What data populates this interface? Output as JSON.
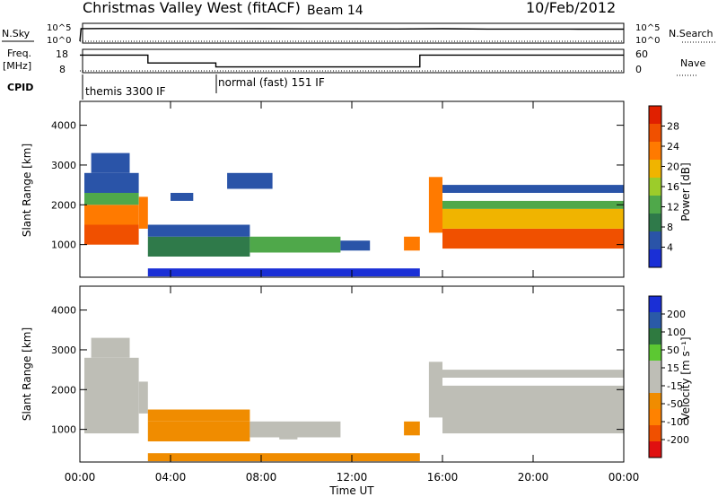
{
  "header": {
    "station": "Christmas Valley West (fitACF)",
    "beam": "Beam 14",
    "date": "10/Feb/2012"
  },
  "colors": {
    "power_scale": [
      "#1a2fd6",
      "#2a54a8",
      "#2f7a4a",
      "#4fa84a",
      "#9ccc2a",
      "#f0b400",
      "#ff7a00",
      "#f05000",
      "#e02000"
    ],
    "velocity_scale": [
      "#1a2fd6",
      "#2a5aa8",
      "#2f7a40",
      "#5cc832",
      "#bebeb6",
      "#bebeb6",
      "#f08c00",
      "#ff8200",
      "#f05000",
      "#e01010"
    ],
    "ground_scatter": "#bebeb6"
  },
  "strip": {
    "nsky_label": "N.Sky",
    "nsky_ticks": [
      "10^5",
      "10^0"
    ],
    "nsearch_label": "N.Search",
    "nsearch_ticks": [
      "10^5",
      "10^0"
    ],
    "freq_label_1": "Freq.",
    "freq_label_2": "[MHz]",
    "freq_ticks": [
      "18",
      "8"
    ],
    "nave_label": "Nave",
    "nave_ticks": [
      "60",
      "0"
    ],
    "cpid_label": "CPID",
    "modes": [
      "themis 3300 IF",
      "normal (fast) 151 IF"
    ]
  },
  "chart_data": [
    {
      "type": "line",
      "title": "N.Sky / N.Search",
      "x_unit": "hours UT",
      "yscale": "log",
      "ylim": [
        1,
        100000
      ],
      "series": [
        {
          "name": "N.Sky",
          "x": [
            0,
            0.05,
            1,
            2,
            3,
            4,
            6,
            8,
            10,
            12,
            14,
            16,
            18,
            20,
            22,
            24
          ],
          "y": [
            1,
            8000,
            9000,
            9000,
            8500,
            8000,
            8000,
            7500,
            7000,
            7000,
            6500,
            7500,
            6000,
            6000,
            5500,
            5500
          ]
        },
        {
          "name": "N.Search",
          "x": [
            0,
            24
          ],
          "y": [
            1,
            1
          ]
        }
      ]
    },
    {
      "type": "line",
      "title": "Freq. / Nave",
      "x_unit": "hours UT",
      "series": [
        {
          "name": "Freq. [MHz]",
          "x": [
            0,
            3,
            3,
            6,
            6,
            15,
            15,
            24
          ],
          "y": [
            16,
            16,
            12,
            12,
            10,
            10,
            16,
            16
          ]
        },
        {
          "name": "Nave",
          "x": [
            0,
            24
          ],
          "y": [
            8,
            8
          ]
        }
      ]
    },
    {
      "type": "heatmap",
      "title": "Power [dB]",
      "xlabel": "Time UT",
      "ylabel": "Slant Range [km]",
      "zlabel": "Power [dB]",
      "xlim": [
        0,
        24
      ],
      "ylim": [
        180,
        4600
      ],
      "xticks": [
        "00:00",
        "04:00",
        "08:00",
        "12:00",
        "16:00",
        "20:00",
        "00:00"
      ],
      "yticks": [
        1000,
        2000,
        3000,
        4000
      ],
      "zticks": [
        4,
        8,
        12,
        16,
        20,
        24,
        28
      ],
      "zlim": [
        0,
        32
      ],
      "cells": [
        [
          0.2,
          2.6,
          1000,
          1500,
          26
        ],
        [
          0.2,
          2.6,
          1500,
          2000,
          22
        ],
        [
          0.2,
          2.6,
          2000,
          2300,
          14
        ],
        [
          0.2,
          2.6,
          2300,
          2800,
          6
        ],
        [
          0.5,
          2.2,
          2800,
          3300,
          4
        ],
        [
          2.6,
          3.0,
          1400,
          2200,
          24
        ],
        [
          3.0,
          7.5,
          700,
          1200,
          10
        ],
        [
          3.0,
          7.5,
          1200,
          1500,
          6
        ],
        [
          7.5,
          11.5,
          800,
          1200,
          12
        ],
        [
          11.5,
          12.8,
          850,
          1100,
          6
        ],
        [
          14.3,
          15.0,
          850,
          1200,
          24
        ],
        [
          15.4,
          16.0,
          1300,
          2700,
          22
        ],
        [
          16.0,
          24.0,
          900,
          1400,
          28
        ],
        [
          16.0,
          24.0,
          1400,
          1900,
          20
        ],
        [
          16.0,
          24.0,
          1900,
          2100,
          14
        ],
        [
          16.0,
          24.0,
          2300,
          2500,
          6
        ],
        [
          3.0,
          15.0,
          200,
          400,
          2
        ],
        [
          4.0,
          5.0,
          2100,
          2300,
          4
        ],
        [
          6.5,
          8.5,
          2400,
          2800,
          4
        ]
      ]
    },
    {
      "type": "heatmap",
      "title": "Velocity [m s^-1]",
      "xlabel": "Time UT",
      "ylabel": "Slant Range [km]",
      "zlabel": "Velocity [m s^-1]",
      "xlim": [
        0,
        24
      ],
      "ylim": [
        180,
        4600
      ],
      "xticks": [
        "00:00",
        "04:00",
        "08:00",
        "12:00",
        "16:00",
        "20:00",
        "00:00"
      ],
      "yticks": [
        1000,
        2000,
        3000,
        4000
      ],
      "zticks": [
        -200,
        -100,
        -50,
        -15,
        15,
        50,
        100,
        200
      ],
      "zlim": [
        -250,
        250
      ],
      "cells": [
        [
          0.2,
          2.6,
          900,
          2800,
          0
        ],
        [
          0.5,
          2.2,
          2800,
          3300,
          0
        ],
        [
          2.6,
          3.0,
          1400,
          2200,
          0
        ],
        [
          3.0,
          7.5,
          700,
          1200,
          -70
        ],
        [
          3.0,
          7.5,
          1200,
          1500,
          -70
        ],
        [
          7.5,
          11.5,
          800,
          1200,
          -40
        ],
        [
          14.3,
          15.0,
          850,
          1200,
          -80
        ],
        [
          15.4,
          16.0,
          1300,
          2700,
          0
        ],
        [
          16.0,
          24.0,
          900,
          2100,
          0
        ],
        [
          16.0,
          24.0,
          2300,
          2500,
          0
        ],
        [
          3.0,
          15.0,
          200,
          400,
          -60
        ],
        [
          8.8,
          9.6,
          750,
          900,
          40
        ]
      ]
    }
  ],
  "colorbars": {
    "power_label": "Power [dB]",
    "power_ticks": [
      "28",
      "24",
      "20",
      "16",
      "12",
      "8",
      "4"
    ],
    "velocity_label": "Velocity [m s⁻¹]",
    "velocity_ticks": [
      "200",
      "100",
      "50",
      "15",
      "-15",
      "-50",
      "-100",
      "-200"
    ]
  },
  "axes": {
    "xlabel": "Time UT",
    "ylabel": "Slant Range [km]",
    "xticks": [
      "00:00",
      "04:00",
      "08:00",
      "12:00",
      "16:00",
      "20:00",
      "00:00"
    ],
    "yticks": [
      "1000",
      "2000",
      "3000",
      "4000"
    ]
  }
}
